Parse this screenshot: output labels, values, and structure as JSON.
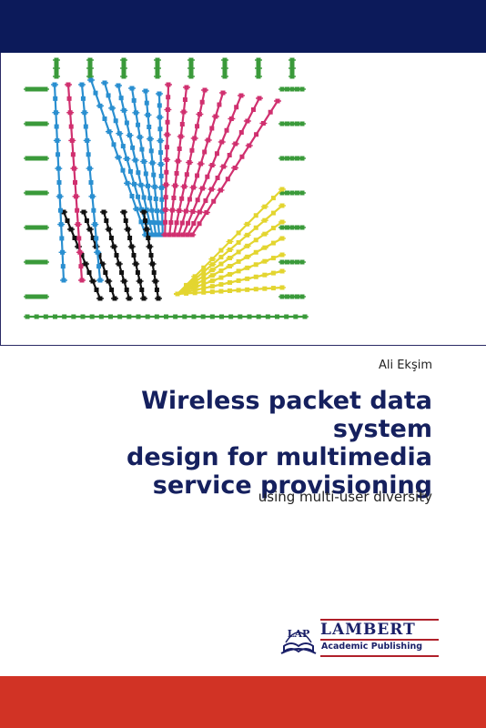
{
  "cover": {
    "author": "Ali Ekşim",
    "title_lines": [
      "Wireless packet data system",
      "design for multimedia",
      "service provisioning"
    ],
    "subtitle": "using multi-user diversity"
  },
  "publisher": {
    "emblem_text": "LAP",
    "name": "LAMBERT",
    "sub": "Academic Publishing"
  },
  "colors": {
    "top_band": "#0c1a5a",
    "bottom_band": "#d13325",
    "title": "#15205e",
    "art_blue": "#2a8fd0",
    "art_magenta": "#d0306f",
    "art_yellow": "#e3d530",
    "art_black": "#111111",
    "art_green": "#3a9a3a"
  }
}
